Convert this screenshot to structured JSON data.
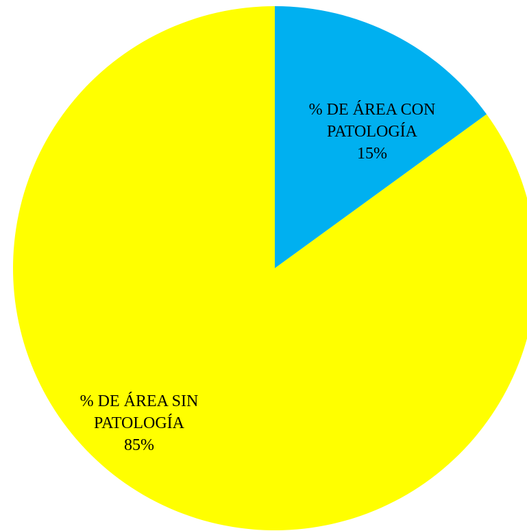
{
  "chart_data": {
    "type": "pie",
    "title": "",
    "slices": [
      {
        "label_lines": [
          "% DE ÁREA CON",
          "PATOLOGÍA"
        ],
        "value": 15,
        "value_label": "15%",
        "color": "#00b0f0"
      },
      {
        "label_lines": [
          "% DE ÁREA SIN",
          "PATOLOGÍA"
        ],
        "value": 85,
        "value_label": "85%",
        "color": "#ffff00"
      }
    ],
    "start_angle": "12 o'clock, clockwise",
    "legend": "none",
    "data_labels": "inside slices"
  }
}
